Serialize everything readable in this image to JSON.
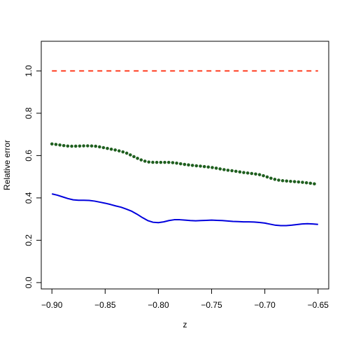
{
  "chart_data": {
    "type": "line",
    "title": "",
    "xlabel": "z",
    "ylabel": "Relative error",
    "xlim": [
      -0.91,
      -0.64
    ],
    "ylim": [
      -0.03,
      1.14
    ],
    "grid": false,
    "x_ticks": [
      -0.9,
      -0.85,
      -0.8,
      -0.75,
      -0.7,
      -0.65
    ],
    "x_tick_labels": [
      "−0.90",
      "−0.85",
      "−0.80",
      "−0.75",
      "−0.70",
      "−0.65"
    ],
    "y_ticks": [
      0.0,
      0.2,
      0.4,
      0.6,
      0.8,
      1.0
    ],
    "y_tick_labels": [
      "0.0",
      "0.2",
      "0.4",
      "0.6",
      "0.8",
      "1.0"
    ],
    "series": [
      {
        "style": "dashed",
        "color": "#ff3b1f",
        "x": [
          -0.9,
          -0.65
        ],
        "values": [
          1.0,
          1.0
        ]
      },
      {
        "style": "dotted",
        "color": "#1f5f1f",
        "x": [
          -0.9,
          -0.895,
          -0.89,
          -0.885,
          -0.88,
          -0.875,
          -0.87,
          -0.865,
          -0.86,
          -0.855,
          -0.85,
          -0.845,
          -0.84,
          -0.835,
          -0.83,
          -0.825,
          -0.82,
          -0.815,
          -0.81,
          -0.805,
          -0.8,
          -0.795,
          -0.79,
          -0.785,
          -0.78,
          -0.775,
          -0.77,
          -0.765,
          -0.76,
          -0.755,
          -0.75,
          -0.745,
          -0.74,
          -0.735,
          -0.73,
          -0.725,
          -0.72,
          -0.715,
          -0.71,
          -0.705,
          -0.7,
          -0.695,
          -0.69,
          -0.685,
          -0.68,
          -0.675,
          -0.67,
          -0.665,
          -0.66,
          -0.655,
          -0.65
        ],
        "values": [
          0.655,
          0.652,
          0.648,
          0.645,
          0.644,
          0.645,
          0.646,
          0.646,
          0.645,
          0.641,
          0.636,
          0.631,
          0.626,
          0.62,
          0.612,
          0.6,
          0.588,
          0.577,
          0.57,
          0.568,
          0.568,
          0.568,
          0.568,
          0.566,
          0.562,
          0.558,
          0.555,
          0.552,
          0.55,
          0.547,
          0.544,
          0.54,
          0.535,
          0.531,
          0.528,
          0.524,
          0.52,
          0.517,
          0.514,
          0.51,
          0.503,
          0.494,
          0.487,
          0.482,
          0.48,
          0.478,
          0.476,
          0.474,
          0.471,
          0.468,
          0.463
        ]
      },
      {
        "style": "solid",
        "color": "#0000dd",
        "x": [
          -0.9,
          -0.895,
          -0.89,
          -0.885,
          -0.88,
          -0.875,
          -0.87,
          -0.865,
          -0.86,
          -0.855,
          -0.85,
          -0.845,
          -0.84,
          -0.835,
          -0.83,
          -0.825,
          -0.82,
          -0.815,
          -0.81,
          -0.805,
          -0.8,
          -0.795,
          -0.79,
          -0.785,
          -0.78,
          -0.775,
          -0.77,
          -0.765,
          -0.76,
          -0.755,
          -0.75,
          -0.745,
          -0.74,
          -0.735,
          -0.73,
          -0.725,
          -0.72,
          -0.715,
          -0.71,
          -0.705,
          -0.7,
          -0.695,
          -0.69,
          -0.685,
          -0.68,
          -0.675,
          -0.67,
          -0.665,
          -0.66,
          -0.655,
          -0.65
        ],
        "values": [
          0.419,
          0.413,
          0.405,
          0.397,
          0.391,
          0.389,
          0.389,
          0.388,
          0.385,
          0.38,
          0.375,
          0.369,
          0.362,
          0.356,
          0.347,
          0.337,
          0.323,
          0.307,
          0.293,
          0.285,
          0.283,
          0.287,
          0.293,
          0.297,
          0.297,
          0.295,
          0.293,
          0.292,
          0.293,
          0.294,
          0.295,
          0.294,
          0.293,
          0.291,
          0.289,
          0.288,
          0.287,
          0.287,
          0.286,
          0.284,
          0.281,
          0.276,
          0.271,
          0.269,
          0.269,
          0.271,
          0.274,
          0.277,
          0.278,
          0.277,
          0.275
        ]
      }
    ]
  }
}
